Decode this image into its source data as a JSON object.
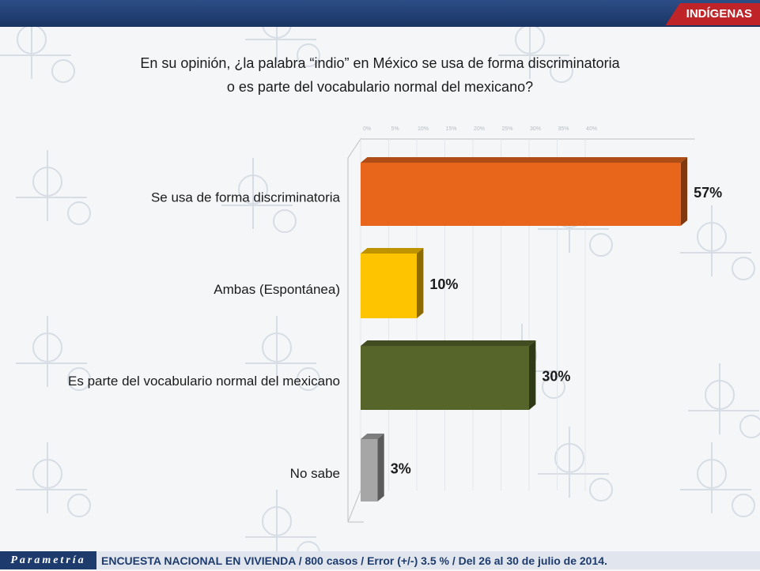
{
  "header": {
    "section_tab": "INDÍGENAS"
  },
  "question": {
    "line1": "En su opinión, ¿la palabra “indio” en México se usa de forma discriminatoria",
    "line2": "o es parte del vocabulario normal del mexicano?"
  },
  "colors": {
    "discriminatoria": "#e8661c",
    "ambas": "#ffc400",
    "vocabulario": "#56662a",
    "no_sabe": "#a6a6a6",
    "brand": "#1e3b6e",
    "accent": "#be2428"
  },
  "chart_data": {
    "type": "bar",
    "orientation": "horizontal",
    "categories": [
      "Se usa de forma discriminatoria",
      "Ambas (Espontánea)",
      "Es parte del vocabulario normal del mexicano",
      "No sabe"
    ],
    "values": [
      57,
      10,
      30,
      3
    ],
    "data_labels": [
      "57%",
      "10%",
      "30%",
      "3%"
    ],
    "axis_ticks": [
      "0%",
      "5%",
      "10%",
      "15%",
      "20%",
      "25%",
      "30%",
      "35%",
      "40%"
    ]
  },
  "footer": {
    "logo": "Parametría",
    "note": "ENCUESTA NACIONAL EN VIVIENDA / 800 casos / Error (+/-) 3.5 % / Del 26 al 30 de julio de 2014."
  }
}
